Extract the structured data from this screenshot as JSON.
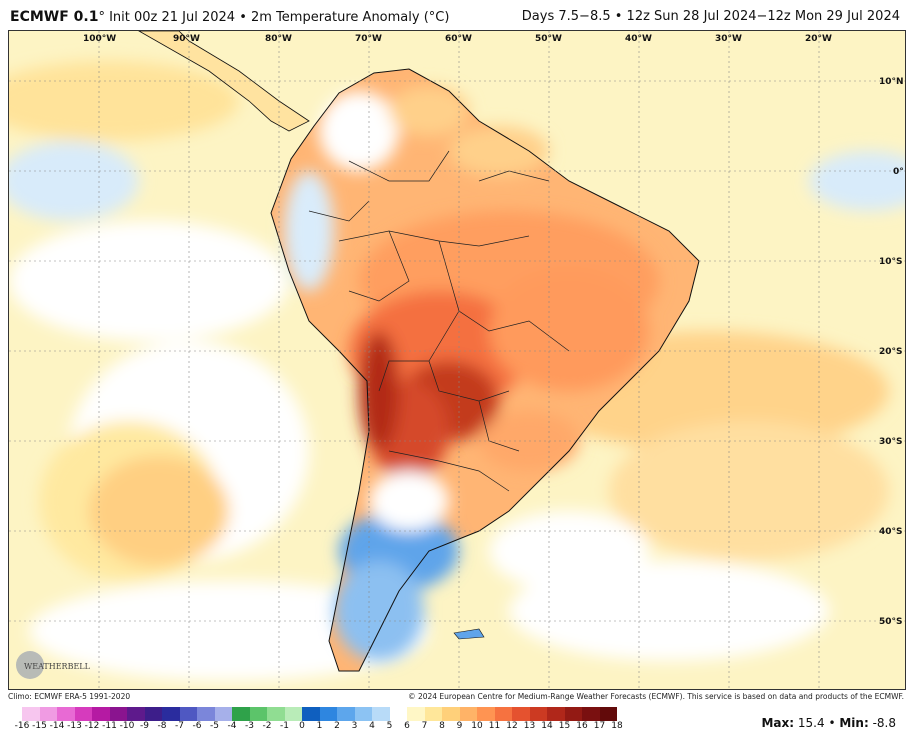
{
  "header": {
    "model": "ECMWF 0.1",
    "init": "° Init 00z 21 Jul 2024 • 2m Temperature Anomaly (°C)",
    "valid": "Days 7.5−8.5 • 12z Sun 28 Jul 2024−12z Mon 29 Jul 2024"
  },
  "map": {
    "lon_labels": [
      "100°W",
      "90°W",
      "80°W",
      "70°W",
      "60°W",
      "50°W",
      "40°W",
      "30°W",
      "20°W"
    ],
    "lat_labels": [
      "10°N",
      "0°",
      "10°S",
      "20°S",
      "30°S",
      "40°S",
      "50°S"
    ]
  },
  "credits": {
    "climo": "Climo: ECMWF ERA-5 1991-2020",
    "copyright": "© 2024 European Centre for Medium-Range Weather Forecasts (ECMWF). This service is based on data and products of the ECMWF."
  },
  "logo": {
    "text": "WEATHERBELL"
  },
  "colorbar": {
    "labels": [
      "-16",
      "-15",
      "-14",
      "-13",
      "-12",
      "-11",
      "-10",
      "-9",
      "-8",
      "-7",
      "-6",
      "-5",
      "-4",
      "-3",
      "-2",
      "-1",
      "0",
      "1",
      "2",
      "3",
      "4",
      "5",
      "6",
      "7",
      "8",
      "9",
      "10",
      "11",
      "12",
      "13",
      "14",
      "15",
      "16",
      "17",
      "18"
    ],
    "colors": [
      "#f7c6ef",
      "#f09be3",
      "#e86ad4",
      "#d63bbd",
      "#b51aa3",
      "#8a148f",
      "#5e1a8c",
      "#3d1e8a",
      "#2a2c9e",
      "#4f58c2",
      "#7b86da",
      "#a6b0ea",
      "#2fa24a",
      "#5cc46a",
      "#90dd92",
      "#b9ecb8",
      "#0f5fbf",
      "#2e86e0",
      "#5da6ec",
      "#8cc3f3",
      "#b8dbf8",
      "#ffffff",
      "#fff7c6",
      "#ffe79a",
      "#ffd07a",
      "#ffb367",
      "#ff9452",
      "#f67240",
      "#e5522f",
      "#cc3a22",
      "#b0271a",
      "#931a14",
      "#7a1010",
      "#620a0a"
    ]
  },
  "stats": {
    "max_label": "Max:",
    "max": "15.4",
    "sep": "•",
    "min_label": "Min:",
    "min": "-8.8"
  }
}
